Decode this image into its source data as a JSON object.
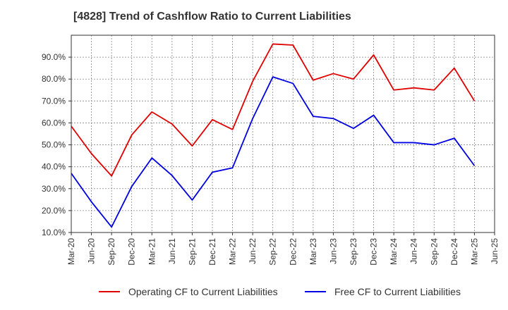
{
  "chart_data": {
    "type": "line",
    "title": "[4828]  Trend of Cashflow Ratio to Current Liabilities",
    "x": [
      "Mar-20",
      "Jun-20",
      "Sep-20",
      "Dec-20",
      "Mar-21",
      "Jun-21",
      "Sep-21",
      "Dec-21",
      "Mar-22",
      "Jun-22",
      "Sep-22",
      "Dec-22",
      "Mar-23",
      "Jun-23",
      "Sep-23",
      "Dec-23",
      "Mar-24",
      "Jun-24",
      "Sep-24",
      "Dec-24",
      "Mar-25",
      "Jun-25"
    ],
    "y_ticks": [
      "10.0%",
      "20.0%",
      "30.0%",
      "40.0%",
      "50.0%",
      "60.0%",
      "70.0%",
      "80.0%",
      "90.0%"
    ],
    "ylim": [
      10,
      100
    ],
    "grid": true,
    "legend_position": "bottom",
    "series": [
      {
        "name": "Operating CF to Current Liabilities",
        "color": "#e00000",
        "values": [
          58.5,
          46.0,
          35.8,
          54.5,
          65.0,
          59.5,
          49.5,
          61.5,
          57.0,
          79.0,
          96.0,
          95.5,
          79.5,
          82.5,
          80.0,
          91.0,
          75.0,
          76.0,
          75.0,
          85.0,
          70.0,
          null
        ]
      },
      {
        "name": "Free CF to Current Liabilities",
        "color": "#0000e0",
        "values": [
          37.0,
          24.0,
          12.5,
          31.0,
          44.0,
          36.0,
          24.8,
          37.5,
          39.5,
          62.0,
          81.0,
          78.0,
          63.0,
          62.0,
          57.5,
          63.5,
          51.0,
          51.0,
          50.0,
          53.0,
          40.5,
          null
        ]
      }
    ]
  }
}
